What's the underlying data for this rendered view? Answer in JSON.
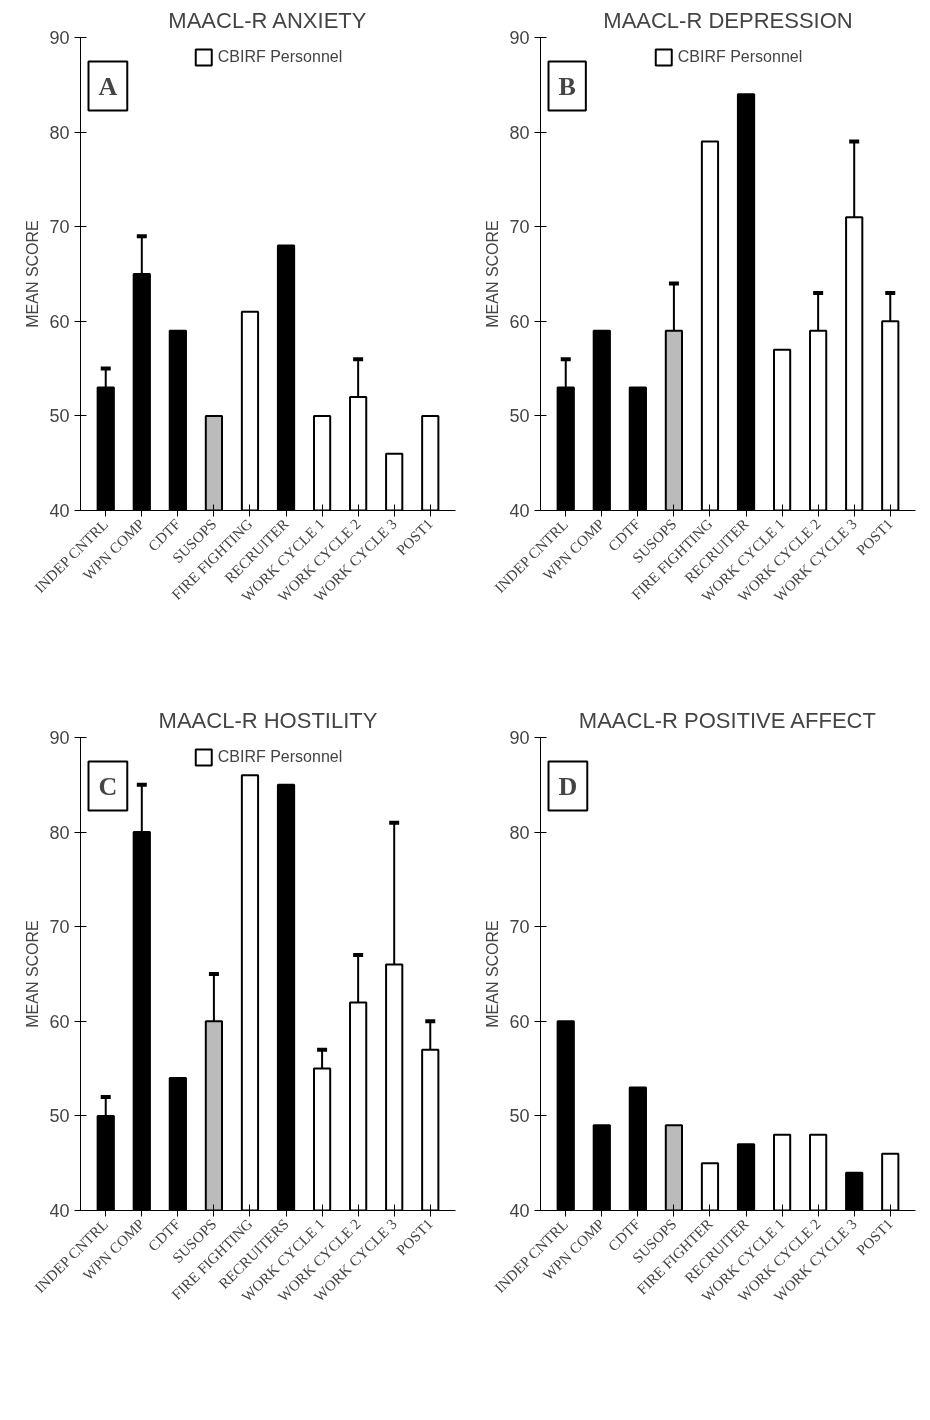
{
  "chart_data": [
    {
      "type": "bar",
      "title": "MAACL-R ANXIETY",
      "ylabel": "MEAN SCORE",
      "annotations": [
        "A"
      ],
      "categories": [
        "INDEP CNTRL",
        "WPN COMP",
        "CDTF",
        "SUSOPS",
        "FIRE FIGHTING",
        "RECRUITER",
        "WORK CYCLE 1",
        "WORK CYCLE 2",
        "WORK CYCLE 3",
        "POST1"
      ],
      "series": [
        {
          "name": "CBIRF Personnel",
          "color": "#ffffff",
          "values": [
            53,
            65,
            59,
            50,
            61,
            68,
            50,
            52,
            46,
            50
          ],
          "errors": [
            2,
            4,
            null,
            null,
            null,
            null,
            null,
            4,
            null,
            null
          ],
          "colors": [
            "#000000",
            "#000000",
            "#000000",
            "#bbbbbb",
            "#ffffff",
            "#000000",
            "#ffffff",
            "#ffffff",
            "#ffffff",
            "#ffffff"
          ]
        }
      ],
      "ylim": [
        40,
        90
      ],
      "yticks": [
        40,
        50,
        60,
        70,
        80,
        90
      ],
      "legend": "top",
      "grid": false
    },
    {
      "type": "bar",
      "title": "MAACL-R DEPRESSION",
      "ylabel": "MEAN SCORE",
      "annotations": [
        "B"
      ],
      "categories": [
        "INDEP CNTRL",
        "WPN COMP",
        "CDTF",
        "SUSOPS",
        "FIRE FIGHTING",
        "RECRUITER",
        "WORK CYCLE 1",
        "WORK CYCLE 2",
        "WORK CYCLE 3",
        "POST1"
      ],
      "series": [
        {
          "name": "CBIRF Personnel",
          "color": "#ffffff",
          "values": [
            53,
            59,
            53,
            59,
            79,
            84,
            57,
            59,
            71,
            60
          ],
          "errors": [
            3,
            null,
            null,
            5,
            null,
            null,
            null,
            4,
            8,
            3
          ],
          "colors": [
            "#000000",
            "#000000",
            "#000000",
            "#bbbbbb",
            "#ffffff",
            "#000000",
            "#ffffff",
            "#ffffff",
            "#ffffff",
            "#ffffff"
          ]
        }
      ],
      "ylim": [
        40,
        90
      ],
      "yticks": [
        40,
        50,
        60,
        70,
        80,
        90
      ],
      "legend": "top",
      "grid": false
    },
    {
      "type": "bar",
      "title": "MAACL-R HOSTILITY",
      "ylabel": "MEAN SCORE",
      "annotations": [
        "C"
      ],
      "categories": [
        "INDEP CNTRL",
        "WPN COMP",
        "CDTF",
        "SUSOPS",
        "FIRE FIGHTING",
        "RECRUITERS",
        "WORK CYCLE 1",
        "WORK CYCLE 2",
        "WORK CYCLE 3",
        "POST1"
      ],
      "series": [
        {
          "name": "CBIRF Personnel",
          "color": "#ffffff",
          "values": [
            50,
            80,
            54,
            60,
            86,
            85,
            55,
            62,
            66,
            57
          ],
          "errors": [
            2,
            5,
            null,
            5,
            null,
            null,
            2,
            5,
            15,
            3
          ],
          "colors": [
            "#000000",
            "#000000",
            "#000000",
            "#bbbbbb",
            "#ffffff",
            "#000000",
            "#ffffff",
            "#ffffff",
            "#ffffff",
            "#ffffff"
          ]
        }
      ],
      "ylim": [
        40,
        90
      ],
      "yticks": [
        40,
        50,
        60,
        70,
        80,
        90
      ],
      "legend": "top",
      "grid": false
    },
    {
      "type": "bar",
      "title": "MAACL-R POSITIVE AFFECT",
      "ylabel": "MEAN SCORE",
      "annotations": [
        "D"
      ],
      "categories": [
        "INDEP CNTRL",
        "WPN COMP",
        "CDTF",
        "SUSOPS",
        "FIRE FIGHTER",
        "RECRUITER",
        "WORK CYCLE 1",
        "WORK CYCLE 2",
        "WORK CYCLE 3",
        "POST1"
      ],
      "series": [
        {
          "values": [
            60,
            49,
            53,
            49,
            45,
            47,
            48,
            48,
            44,
            46
          ],
          "colors": [
            "#000000",
            "#000000",
            "#000000",
            "#bbbbbb",
            "#ffffff",
            "#000000",
            "#ffffff",
            "#ffffff",
            "#000000",
            "#ffffff"
          ]
        }
      ],
      "ylim": [
        40,
        90
      ],
      "yticks": [
        40,
        50,
        60,
        70,
        80,
        90
      ],
      "legend": false,
      "grid": false
    }
  ]
}
